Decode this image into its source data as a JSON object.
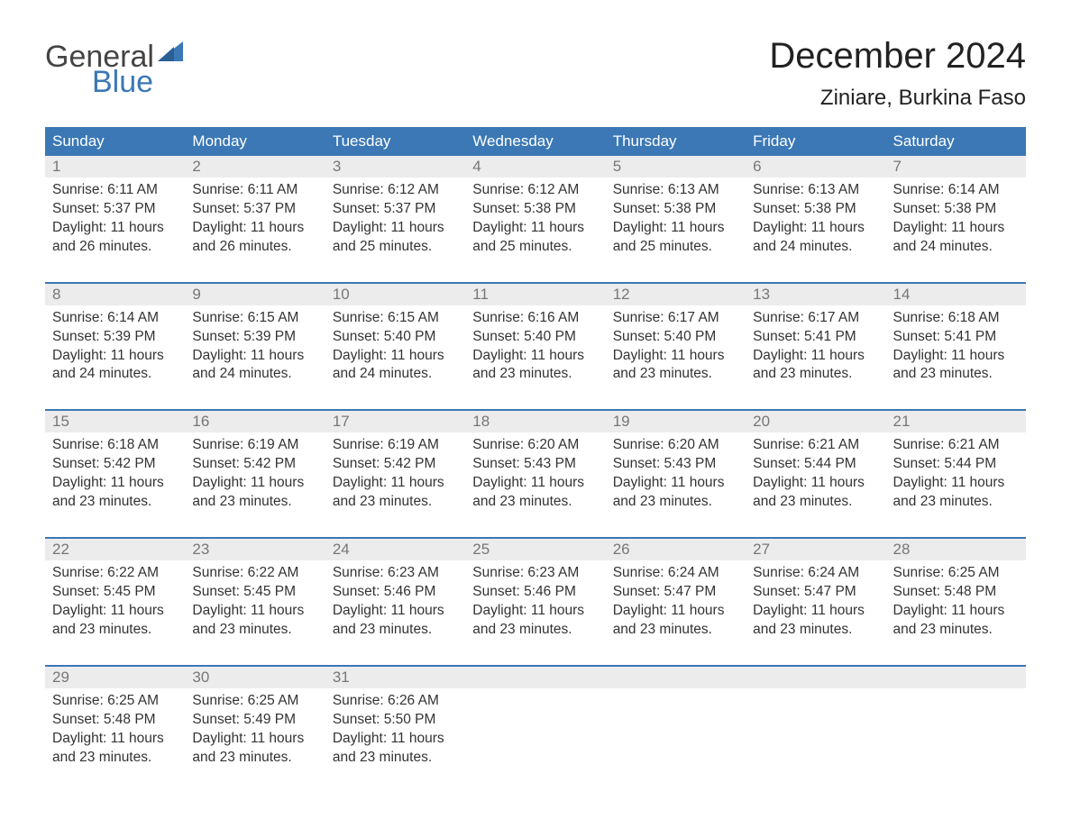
{
  "brand": {
    "line1": "General",
    "line2": "Blue",
    "color_text": "#444444",
    "color_accent": "#3b78b5"
  },
  "title": "December 2024",
  "location": "Ziniare, Burkina Faso",
  "colors": {
    "header_bg": "#3b78b5",
    "header_text": "#ffffff",
    "daynum_bg": "#ececec",
    "daynum_text": "#777777",
    "body_text": "#333333",
    "week_divider": "#3b78b5",
    "page_bg": "#ffffff"
  },
  "typography": {
    "title_fontsize": 40,
    "location_fontsize": 24,
    "header_fontsize": 17,
    "daynum_fontsize": 17,
    "cell_fontsize": 15.5
  },
  "weekdays": [
    "Sunday",
    "Monday",
    "Tuesday",
    "Wednesday",
    "Thursday",
    "Friday",
    "Saturday"
  ],
  "weeks": [
    [
      {
        "day": "1",
        "sunrise": "Sunrise: 6:11 AM",
        "sunset": "Sunset: 5:37 PM",
        "d1": "Daylight: 11 hours",
        "d2": "and 26 minutes."
      },
      {
        "day": "2",
        "sunrise": "Sunrise: 6:11 AM",
        "sunset": "Sunset: 5:37 PM",
        "d1": "Daylight: 11 hours",
        "d2": "and 26 minutes."
      },
      {
        "day": "3",
        "sunrise": "Sunrise: 6:12 AM",
        "sunset": "Sunset: 5:37 PM",
        "d1": "Daylight: 11 hours",
        "d2": "and 25 minutes."
      },
      {
        "day": "4",
        "sunrise": "Sunrise: 6:12 AM",
        "sunset": "Sunset: 5:38 PM",
        "d1": "Daylight: 11 hours",
        "d2": "and 25 minutes."
      },
      {
        "day": "5",
        "sunrise": "Sunrise: 6:13 AM",
        "sunset": "Sunset: 5:38 PM",
        "d1": "Daylight: 11 hours",
        "d2": "and 25 minutes."
      },
      {
        "day": "6",
        "sunrise": "Sunrise: 6:13 AM",
        "sunset": "Sunset: 5:38 PM",
        "d1": "Daylight: 11 hours",
        "d2": "and 24 minutes."
      },
      {
        "day": "7",
        "sunrise": "Sunrise: 6:14 AM",
        "sunset": "Sunset: 5:38 PM",
        "d1": "Daylight: 11 hours",
        "d2": "and 24 minutes."
      }
    ],
    [
      {
        "day": "8",
        "sunrise": "Sunrise: 6:14 AM",
        "sunset": "Sunset: 5:39 PM",
        "d1": "Daylight: 11 hours",
        "d2": "and 24 minutes."
      },
      {
        "day": "9",
        "sunrise": "Sunrise: 6:15 AM",
        "sunset": "Sunset: 5:39 PM",
        "d1": "Daylight: 11 hours",
        "d2": "and 24 minutes."
      },
      {
        "day": "10",
        "sunrise": "Sunrise: 6:15 AM",
        "sunset": "Sunset: 5:40 PM",
        "d1": "Daylight: 11 hours",
        "d2": "and 24 minutes."
      },
      {
        "day": "11",
        "sunrise": "Sunrise: 6:16 AM",
        "sunset": "Sunset: 5:40 PM",
        "d1": "Daylight: 11 hours",
        "d2": "and 23 minutes."
      },
      {
        "day": "12",
        "sunrise": "Sunrise: 6:17 AM",
        "sunset": "Sunset: 5:40 PM",
        "d1": "Daylight: 11 hours",
        "d2": "and 23 minutes."
      },
      {
        "day": "13",
        "sunrise": "Sunrise: 6:17 AM",
        "sunset": "Sunset: 5:41 PM",
        "d1": "Daylight: 11 hours",
        "d2": "and 23 minutes."
      },
      {
        "day": "14",
        "sunrise": "Sunrise: 6:18 AM",
        "sunset": "Sunset: 5:41 PM",
        "d1": "Daylight: 11 hours",
        "d2": "and 23 minutes."
      }
    ],
    [
      {
        "day": "15",
        "sunrise": "Sunrise: 6:18 AM",
        "sunset": "Sunset: 5:42 PM",
        "d1": "Daylight: 11 hours",
        "d2": "and 23 minutes."
      },
      {
        "day": "16",
        "sunrise": "Sunrise: 6:19 AM",
        "sunset": "Sunset: 5:42 PM",
        "d1": "Daylight: 11 hours",
        "d2": "and 23 minutes."
      },
      {
        "day": "17",
        "sunrise": "Sunrise: 6:19 AM",
        "sunset": "Sunset: 5:42 PM",
        "d1": "Daylight: 11 hours",
        "d2": "and 23 minutes."
      },
      {
        "day": "18",
        "sunrise": "Sunrise: 6:20 AM",
        "sunset": "Sunset: 5:43 PM",
        "d1": "Daylight: 11 hours",
        "d2": "and 23 minutes."
      },
      {
        "day": "19",
        "sunrise": "Sunrise: 6:20 AM",
        "sunset": "Sunset: 5:43 PM",
        "d1": "Daylight: 11 hours",
        "d2": "and 23 minutes."
      },
      {
        "day": "20",
        "sunrise": "Sunrise: 6:21 AM",
        "sunset": "Sunset: 5:44 PM",
        "d1": "Daylight: 11 hours",
        "d2": "and 23 minutes."
      },
      {
        "day": "21",
        "sunrise": "Sunrise: 6:21 AM",
        "sunset": "Sunset: 5:44 PM",
        "d1": "Daylight: 11 hours",
        "d2": "and 23 minutes."
      }
    ],
    [
      {
        "day": "22",
        "sunrise": "Sunrise: 6:22 AM",
        "sunset": "Sunset: 5:45 PM",
        "d1": "Daylight: 11 hours",
        "d2": "and 23 minutes."
      },
      {
        "day": "23",
        "sunrise": "Sunrise: 6:22 AM",
        "sunset": "Sunset: 5:45 PM",
        "d1": "Daylight: 11 hours",
        "d2": "and 23 minutes."
      },
      {
        "day": "24",
        "sunrise": "Sunrise: 6:23 AM",
        "sunset": "Sunset: 5:46 PM",
        "d1": "Daylight: 11 hours",
        "d2": "and 23 minutes."
      },
      {
        "day": "25",
        "sunrise": "Sunrise: 6:23 AM",
        "sunset": "Sunset: 5:46 PM",
        "d1": "Daylight: 11 hours",
        "d2": "and 23 minutes."
      },
      {
        "day": "26",
        "sunrise": "Sunrise: 6:24 AM",
        "sunset": "Sunset: 5:47 PM",
        "d1": "Daylight: 11 hours",
        "d2": "and 23 minutes."
      },
      {
        "day": "27",
        "sunrise": "Sunrise: 6:24 AM",
        "sunset": "Sunset: 5:47 PM",
        "d1": "Daylight: 11 hours",
        "d2": "and 23 minutes."
      },
      {
        "day": "28",
        "sunrise": "Sunrise: 6:25 AM",
        "sunset": "Sunset: 5:48 PM",
        "d1": "Daylight: 11 hours",
        "d2": "and 23 minutes."
      }
    ],
    [
      {
        "day": "29",
        "sunrise": "Sunrise: 6:25 AM",
        "sunset": "Sunset: 5:48 PM",
        "d1": "Daylight: 11 hours",
        "d2": "and 23 minutes."
      },
      {
        "day": "30",
        "sunrise": "Sunrise: 6:25 AM",
        "sunset": "Sunset: 5:49 PM",
        "d1": "Daylight: 11 hours",
        "d2": "and 23 minutes."
      },
      {
        "day": "31",
        "sunrise": "Sunrise: 6:26 AM",
        "sunset": "Sunset: 5:50 PM",
        "d1": "Daylight: 11 hours",
        "d2": "and 23 minutes."
      },
      null,
      null,
      null,
      null
    ]
  ]
}
